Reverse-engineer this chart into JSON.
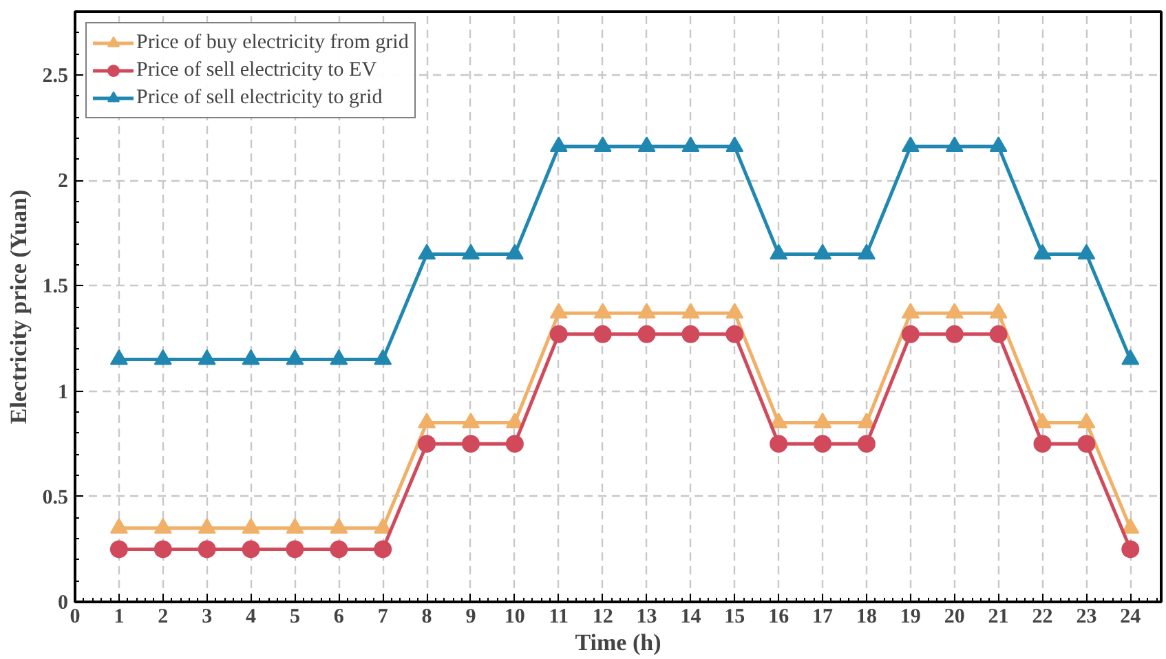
{
  "chart_data": {
    "type": "line",
    "xlabel": "Time (h)",
    "ylabel": "Electricity price (Yuan)",
    "x": [
      1,
      2,
      3,
      4,
      5,
      6,
      7,
      8,
      9,
      10,
      11,
      12,
      13,
      14,
      15,
      16,
      17,
      18,
      19,
      20,
      21,
      22,
      23,
      24
    ],
    "series": [
      {
        "name": "Price of buy electricity from grid",
        "color": "#f0b068",
        "marker": "triangle",
        "values": [
          0.35,
          0.35,
          0.35,
          0.35,
          0.35,
          0.35,
          0.35,
          0.85,
          0.85,
          0.85,
          1.37,
          1.37,
          1.37,
          1.37,
          1.37,
          0.85,
          0.85,
          0.85,
          1.37,
          1.37,
          1.37,
          0.85,
          0.85,
          0.35
        ]
      },
      {
        "name": "Price of sell electricity to EV",
        "color": "#d04a5c",
        "marker": "circle",
        "values": [
          0.25,
          0.25,
          0.25,
          0.25,
          0.25,
          0.25,
          0.25,
          0.75,
          0.75,
          0.75,
          1.27,
          1.27,
          1.27,
          1.27,
          1.27,
          0.75,
          0.75,
          0.75,
          1.27,
          1.27,
          1.27,
          0.75,
          0.75,
          0.25
        ]
      },
      {
        "name": "Price of sell electricity to grid",
        "color": "#2088b0",
        "marker": "triangle",
        "values": [
          1.15,
          1.15,
          1.15,
          1.15,
          1.15,
          1.15,
          1.15,
          1.65,
          1.65,
          1.65,
          2.16,
          2.16,
          2.16,
          2.16,
          2.16,
          1.65,
          1.65,
          1.65,
          2.16,
          2.16,
          2.16,
          1.65,
          1.65,
          1.15
        ]
      }
    ],
    "xlim": [
      0,
      24.7
    ],
    "ylim": [
      0,
      2.8
    ],
    "xticks": [
      0,
      1,
      2,
      3,
      4,
      5,
      6,
      7,
      8,
      9,
      10,
      11,
      12,
      13,
      14,
      15,
      16,
      17,
      18,
      19,
      20,
      21,
      22,
      23,
      24
    ],
    "yticks": [
      0,
      0.5,
      1,
      1.5,
      2,
      2.5
    ],
    "grid": true,
    "legend": "top left",
    "line_style": "solid"
  }
}
